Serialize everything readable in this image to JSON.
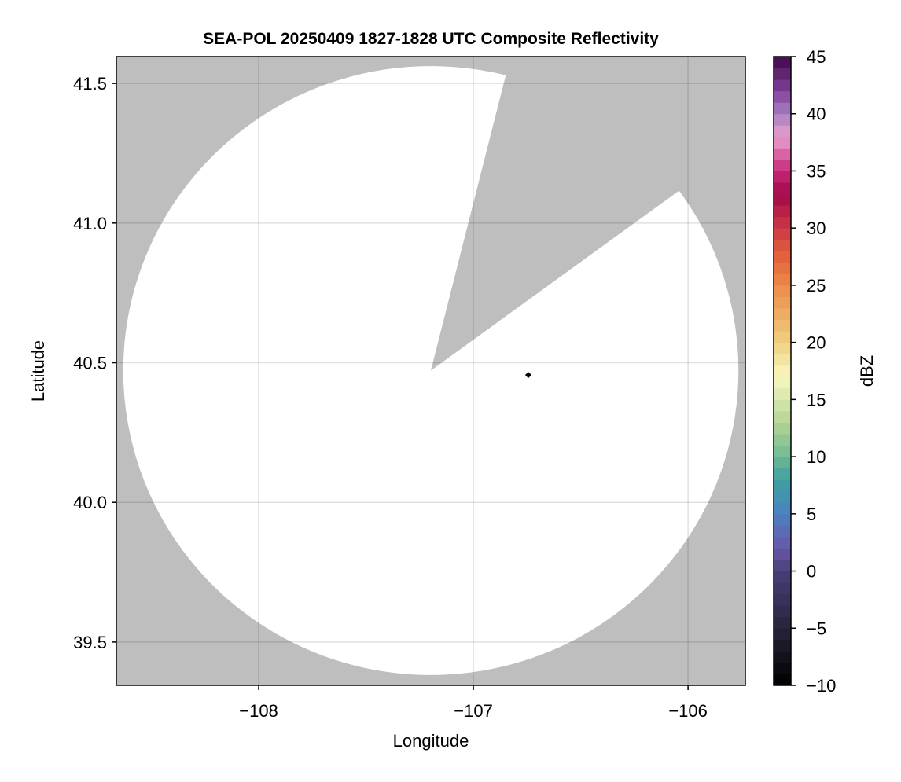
{
  "chart_data": {
    "type": "heatmap",
    "title": "SEA-POL 20250409 1827-1828 UTC Composite Reflectivity",
    "xlabel": "Longitude",
    "ylabel": "Latitude",
    "xlim": [
      -108.663,
      -105.733
    ],
    "ylim": [
      39.345,
      41.596
    ],
    "xticks": [
      -108,
      -107,
      -106
    ],
    "xtick_labels": [
      "−108",
      "−107",
      "−106"
    ],
    "yticks": [
      39.5,
      40.0,
      40.5,
      41.0,
      41.5
    ],
    "ytick_labels": [
      "39.5",
      "40.0",
      "40.5",
      "41.0",
      "41.5"
    ],
    "grid": true,
    "background_color": "#bebebe",
    "coverage": {
      "center_lon": -107.198,
      "center_lat": 40.472,
      "radius_deg_lat": 1.09,
      "fill_color": "#ffffff",
      "blocked_sector_azimuth_deg": [
        14.1,
        53.8
      ]
    },
    "marker": {
      "lon": -106.744,
      "lat": 40.456,
      "color": "#000000",
      "shape": "diamond"
    },
    "colorbar": {
      "label": "dBZ",
      "range": [
        -10,
        45
      ],
      "ticks": [
        -10,
        -5,
        0,
        5,
        10,
        15,
        20,
        25,
        30,
        35,
        40,
        45
      ],
      "tick_labels": [
        "−10",
        "−5",
        "0",
        "5",
        "10",
        "15",
        "20",
        "25",
        "30",
        "35",
        "40",
        "45"
      ],
      "bin_width": 1,
      "stops": [
        [
          -10,
          "#000000"
        ],
        [
          -5,
          "#28223a"
        ],
        [
          0,
          "#4a3f78"
        ],
        [
          2,
          "#6a55a8"
        ],
        [
          5,
          "#4a82c0"
        ],
        [
          8,
          "#3fa0a0"
        ],
        [
          10,
          "#6fb894"
        ],
        [
          13,
          "#b4d494"
        ],
        [
          17,
          "#f8f8c0"
        ],
        [
          20,
          "#f0d080"
        ],
        [
          25,
          "#ec8a48"
        ],
        [
          28,
          "#e05a3c"
        ],
        [
          31,
          "#c02848"
        ],
        [
          33,
          "#a00848"
        ],
        [
          35,
          "#c82878"
        ],
        [
          38,
          "#e8a0d0"
        ],
        [
          40,
          "#a880c0"
        ],
        [
          42,
          "#80409a"
        ],
        [
          45,
          "#400848"
        ]
      ]
    }
  }
}
